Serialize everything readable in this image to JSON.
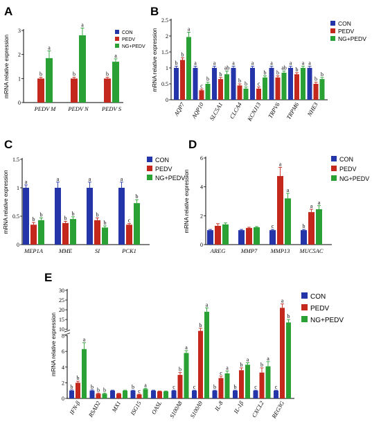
{
  "colors": {
    "CON": "#2335a8",
    "PEDV": "#c4271b",
    "NG+PEDV": "#2aa135"
  },
  "chart_data": [
    {
      "panel": "A",
      "type": "bar",
      "ylabel": "mRNA relative expression",
      "ylim": [
        0,
        3
      ],
      "yticks": [
        0,
        1,
        2,
        3
      ],
      "legend": [
        "CON",
        "PEDV",
        "NG+PEDV"
      ],
      "categories": [
        "PEDV M",
        "PEDV N",
        "PEDV S"
      ],
      "series": [
        {
          "name": "PEDV",
          "values": [
            1.0,
            1.0,
            1.0
          ],
          "errors": [
            0.05,
            0.05,
            0.05
          ],
          "sig": [
            "b",
            "b",
            "b"
          ]
        },
        {
          "name": "NG+PEDV",
          "values": [
            1.85,
            2.8,
            1.7
          ],
          "errors": [
            0.3,
            0.3,
            0.12
          ],
          "sig": [
            "a",
            "a",
            "a"
          ]
        }
      ]
    },
    {
      "panel": "B",
      "type": "bar",
      "ylabel": "mRNA relative expression",
      "ylim": [
        0,
        2.5
      ],
      "yticks": [
        0,
        0.5,
        1,
        1.5,
        2,
        2.5
      ],
      "legend": [
        "CON",
        "PEDV",
        "NG+PEDV"
      ],
      "categories": [
        "AQP7",
        "AQP10",
        "SLC5A1",
        "CLCA4",
        "KCNJ13",
        "TRPV6",
        "TRPM6",
        "NHE3"
      ],
      "series": [
        {
          "name": "CON",
          "values": [
            1.0,
            1.0,
            1.0,
            1.0,
            1.0,
            1.0,
            1.0,
            1.0
          ],
          "errors": [
            0.05,
            0.05,
            0.05,
            0.05,
            0.05,
            0.05,
            0.05,
            0.05
          ],
          "sig": [
            "b",
            "a",
            "a",
            "a",
            "a",
            "a",
            "a",
            "a"
          ]
        },
        {
          "name": "PEDV",
          "values": [
            1.25,
            0.3,
            0.65,
            0.45,
            0.35,
            0.7,
            0.8,
            0.5
          ],
          "errors": [
            0.07,
            0.04,
            0.05,
            0.05,
            0.05,
            0.05,
            0.05,
            0.05
          ],
          "sig": [
            "b",
            "c",
            "b",
            "b",
            "c",
            "b",
            "b",
            "b"
          ]
        },
        {
          "name": "NG+PEDV",
          "values": [
            1.97,
            0.5,
            0.8,
            0.35,
            0.7,
            0.85,
            1.0,
            0.65
          ],
          "errors": [
            0.15,
            0.05,
            0.1,
            0.05,
            0.05,
            0.05,
            0.05,
            0.05
          ],
          "sig": [
            "a",
            "b",
            "ab",
            "b",
            "b",
            "ab",
            "a",
            "b"
          ]
        }
      ]
    },
    {
      "panel": "C",
      "type": "bar",
      "ylabel": "mRNA relative expression",
      "ylim": [
        0,
        1.5
      ],
      "yticks": [
        0,
        0.5,
        1.0,
        1.5
      ],
      "legend": [
        "CON",
        "PEDV",
        "NG+PEDV"
      ],
      "categories": [
        "MEP1A",
        "MME",
        "SI",
        "PCK1"
      ],
      "series": [
        {
          "name": "CON",
          "values": [
            1.0,
            1.0,
            1.0,
            1.0
          ],
          "errors": [
            0.05,
            0.1,
            0.1,
            0.1
          ],
          "sig": [
            "a",
            "a",
            "a",
            "a"
          ]
        },
        {
          "name": "PEDV",
          "values": [
            0.35,
            0.38,
            0.43,
            0.35
          ],
          "errors": [
            0.04,
            0.03,
            0.04,
            0.02
          ],
          "sig": [
            "b",
            "b",
            "b",
            "c"
          ]
        },
        {
          "name": "NG+PEDV",
          "values": [
            0.43,
            0.45,
            0.3,
            0.73
          ],
          "errors": [
            0.04,
            0.04,
            0.03,
            0.06
          ],
          "sig": [
            "b",
            "b",
            "b",
            "b"
          ]
        }
      ]
    },
    {
      "panel": "D",
      "type": "bar",
      "ylabel": "mRNA relative expression",
      "ylim": [
        0,
        6
      ],
      "yticks": [
        0,
        2,
        4,
        6
      ],
      "legend": [
        "CON",
        "PEDV",
        "NG+PEDV"
      ],
      "categories": [
        "AREG",
        "MMP7",
        "MMP13",
        "MUC5AC"
      ],
      "series": [
        {
          "name": "CON",
          "values": [
            1.0,
            1.0,
            1.0,
            1.0
          ],
          "errors": [
            0.05,
            0.05,
            0.05,
            0.05
          ],
          "sig": [
            "",
            "",
            "c",
            "b"
          ]
        },
        {
          "name": "PEDV",
          "values": [
            1.3,
            1.15,
            4.75,
            2.25
          ],
          "errors": [
            0.15,
            0.05,
            0.6,
            0.2
          ],
          "sig": [
            "",
            "",
            "a",
            "a"
          ]
        },
        {
          "name": "NG+PEDV",
          "values": [
            1.4,
            1.2,
            3.2,
            2.45
          ],
          "errors": [
            0.1,
            0.05,
            0.35,
            0.25
          ],
          "sig": [
            "",
            "",
            "a",
            "a"
          ]
        }
      ]
    },
    {
      "panel": "E",
      "type": "bar",
      "ylabel": "mRNA relative expression",
      "axis_break": [
        8,
        10
      ],
      "yticks_lower": [
        0,
        2,
        4,
        6,
        8
      ],
      "yticks_upper": [
        10,
        15,
        20,
        25,
        30
      ],
      "legend": [
        "CON",
        "PEDV",
        "NG+PEDV"
      ],
      "categories": [
        "IFN-β",
        "RSAD2",
        "MX1",
        "ISG15",
        "OASL",
        "S100A8",
        "S100A9",
        "IL-8",
        "IL-1β",
        "CXCL2",
        "REG3G"
      ],
      "series": [
        {
          "name": "CON",
          "values": [
            1.0,
            1.0,
            1.0,
            1.0,
            1.0,
            1.0,
            1.0,
            1.0,
            1.0,
            1.0,
            1.0
          ],
          "errors": [
            0.08,
            0.08,
            0.05,
            0.05,
            0.05,
            0.05,
            0.05,
            0.05,
            0.05,
            0.05,
            0.05
          ],
          "sig": [
            "b",
            "b",
            "",
            "b",
            "",
            "c",
            "c",
            "b",
            "b",
            "c",
            "c"
          ]
        },
        {
          "name": "PEDV",
          "values": [
            2.0,
            0.6,
            0.6,
            0.5,
            0.9,
            3.0,
            9.5,
            2.6,
            3.6,
            3.3,
            21.0
          ],
          "errors": [
            0.2,
            0.08,
            0.05,
            0.05,
            0.05,
            0.3,
            1.0,
            0.25,
            0.3,
            0.6,
            2.0
          ],
          "sig": [
            "b",
            "b",
            "",
            "c",
            "",
            "b",
            "b",
            "c",
            "b",
            "b",
            "a"
          ]
        },
        {
          "name": "NG+PEDV",
          "values": [
            6.3,
            0.6,
            1.0,
            1.2,
            0.9,
            5.8,
            19.0,
            3.2,
            4.3,
            4.1,
            13.5
          ],
          "errors": [
            0.8,
            0.08,
            0.05,
            0.1,
            0.05,
            0.3,
            2.0,
            0.3,
            0.25,
            0.6,
            1.5
          ],
          "sig": [
            "a",
            "b",
            "",
            "a",
            "",
            "a",
            "a",
            "a",
            "a",
            "a",
            "b"
          ]
        }
      ]
    }
  ]
}
